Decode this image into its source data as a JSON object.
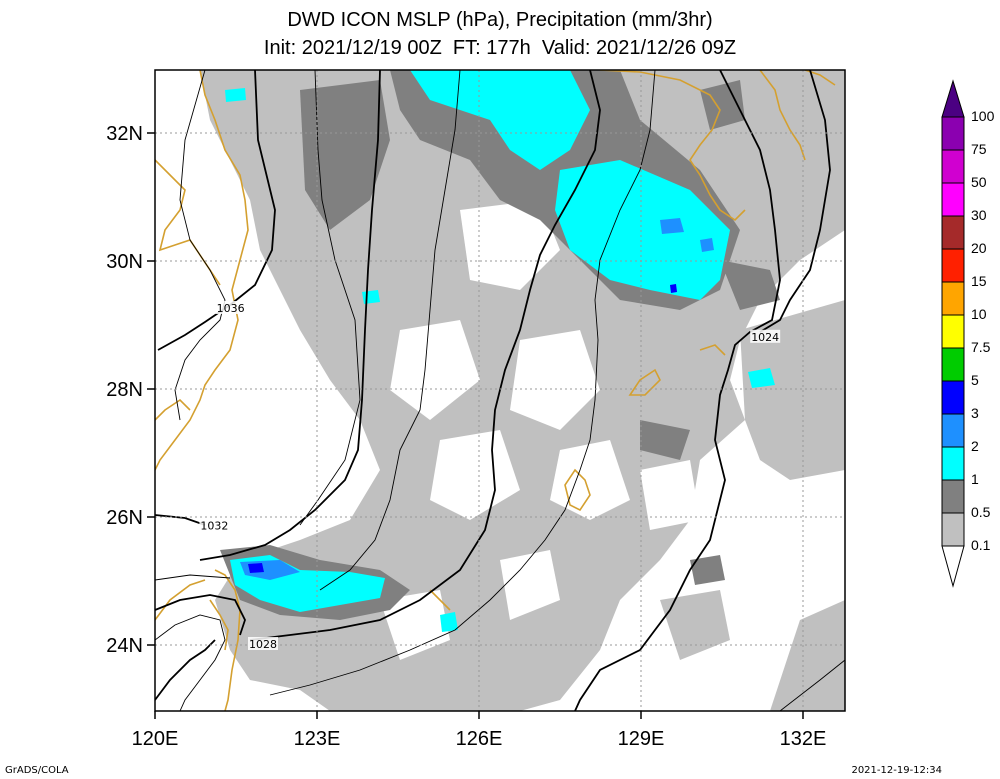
{
  "title_line1": "DWD ICON MSLP (hPa), Precipitation (mm/3hr)",
  "title_line2": "Init: 2021/12/19 00Z  FT: 177h  Valid: 2021/12/26 09Z",
  "lat_labels": [
    {
      "lat": 32,
      "text": "32N"
    },
    {
      "lat": 30,
      "text": "30N"
    },
    {
      "lat": 28,
      "text": "28N"
    },
    {
      "lat": 26,
      "text": "26N"
    },
    {
      "lat": 24,
      "text": "24N"
    }
  ],
  "lon_labels": [
    {
      "lon": 120,
      "text": "120E"
    },
    {
      "lon": 123,
      "text": "123E"
    },
    {
      "lon": 126,
      "text": "126E"
    },
    {
      "lon": 129,
      "text": "129E"
    },
    {
      "lon": 132,
      "text": "132E"
    }
  ],
  "isobar_labels": [
    {
      "value": "1036",
      "lon": 121.4,
      "lat": 29.25
    },
    {
      "value": "1032",
      "lon": 121.1,
      "lat": 25.85
    },
    {
      "value": "1028",
      "lon": 122.0,
      "lat": 24.0
    },
    {
      "value": "1024",
      "lon": 131.3,
      "lat": 28.8
    }
  ],
  "colorbar": {
    "levels": [
      {
        "label": "100",
        "color": "#4b0082"
      },
      {
        "label": "75",
        "color": "#8b00b0"
      },
      {
        "label": "50",
        "color": "#d000d0"
      },
      {
        "label": "30",
        "color": "#ff00ff"
      },
      {
        "label": "20",
        "color": "#a52a2a"
      },
      {
        "label": "15",
        "color": "#ff2000"
      },
      {
        "label": "10",
        "color": "#ffa500"
      },
      {
        "label": "7.5",
        "color": "#ffff00"
      },
      {
        "label": "5",
        "color": "#00cc00"
      },
      {
        "label": "3",
        "color": "#0000ff"
      },
      {
        "label": "2",
        "color": "#1e90ff"
      },
      {
        "label": "1",
        "color": "#00ffff"
      },
      {
        "label": "0.5",
        "color": "#808080"
      },
      {
        "label": "0.1",
        "color": "#c0c0c0"
      }
    ],
    "bottom_color": "#ffffff"
  },
  "colors": {
    "coastline": "#d4a030",
    "isobar": "#000000",
    "light_precip": "#c0c0c0",
    "medium_precip": "#808080",
    "heavy_precip": "#00ffff",
    "very_heavy_precip": "#1e90ff",
    "extreme_precip": "#0000ff"
  },
  "footer_left": "GrADS/COLA",
  "footer_right": "2021-12-19-12:34"
}
